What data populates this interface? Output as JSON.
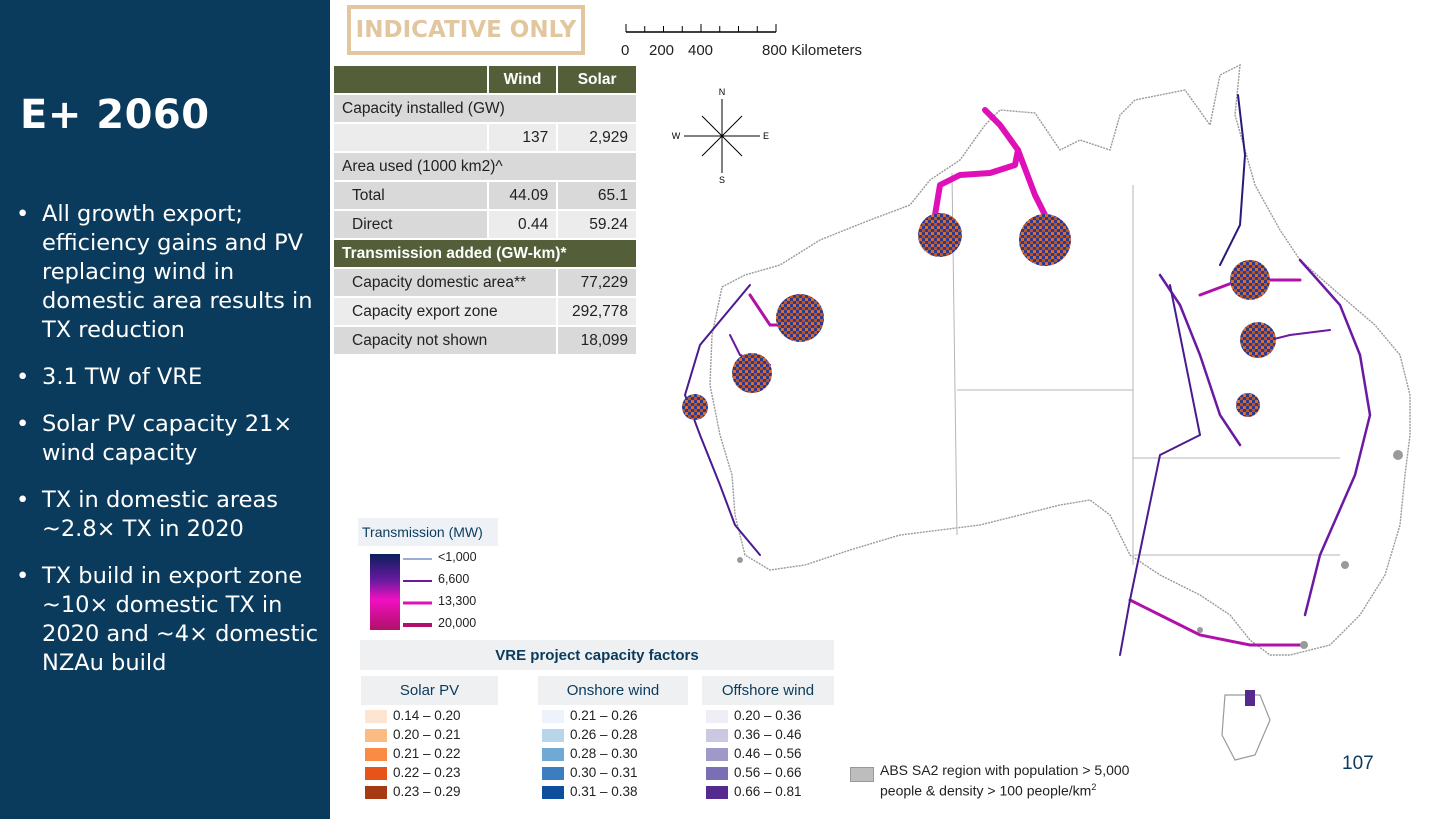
{
  "sidebar": {
    "title": "E+ 2060",
    "bullets": [
      "All growth export; efficiency gains and PV replacing wind in domestic area results in TX reduction",
      "3.1 TW of VRE",
      "Solar PV capacity 21× wind capacity",
      "TX in domestic areas ~2.8× TX in 2020",
      "TX build in export zone ~10× domestic TX in 2020 and ~4× domestic NZAu build"
    ]
  },
  "banner": {
    "text": "INDICATIVE ONLY",
    "color": "#e2c79e"
  },
  "scalebar": {
    "labels": [
      "0",
      "200",
      "400",
      "800 Kilometers"
    ]
  },
  "compass": {
    "n": "N",
    "s": "S",
    "e": "E",
    "w": "W"
  },
  "table": {
    "col_wind": "Wind",
    "col_solar": "Solar",
    "capacity_label": "Capacity installed (GW)",
    "capacity_wind": "137",
    "capacity_solar": "2,929",
    "area_label": "Area used (1000 km2)^",
    "total_label": "Total",
    "total_wind": "44.09",
    "total_solar": "65.1",
    "direct_label": "Direct",
    "direct_wind": "0.44",
    "direct_solar": "59.24",
    "tx_label": "Transmission added (GW-km)*",
    "dom_label": "Capacity domestic area**",
    "dom_value": "77,229",
    "export_label": "Capacity export zone",
    "export_value": "292,778",
    "notshown_label": "Capacity not shown",
    "notshown_value": "18,099"
  },
  "tx_legend": {
    "title": "Transmission (MW)",
    "items": [
      "<1,000",
      "6,600",
      "13,300",
      "20,000"
    ]
  },
  "vre_legend": {
    "title": "VRE project capacity factors",
    "solar": {
      "head": "Solar PV",
      "items": [
        {
          "label": "0.14 – 0.20",
          "color": "#fde5d2"
        },
        {
          "label": "0.20 – 0.21",
          "color": "#fdbb84"
        },
        {
          "label": "0.21 – 0.22",
          "color": "#f98b44"
        },
        {
          "label": "0.22 – 0.23",
          "color": "#e6541a"
        },
        {
          "label": "0.23 – 0.29",
          "color": "#a63a12"
        }
      ]
    },
    "onshore": {
      "head": "Onshore wind",
      "items": [
        {
          "label": "0.21 – 0.26",
          "color": "#eef3fb"
        },
        {
          "label": "0.26 – 0.28",
          "color": "#b9d5ea"
        },
        {
          "label": "0.28 – 0.30",
          "color": "#6fa9d4"
        },
        {
          "label": "0.30 – 0.31",
          "color": "#3a7ebf"
        },
        {
          "label": "0.31 – 0.38",
          "color": "#0d4f9c"
        }
      ]
    },
    "offshore": {
      "head": "Offshore wind",
      "items": [
        {
          "label": "0.20 – 0.36",
          "color": "#efeef6"
        },
        {
          "label": "0.36 – 0.46",
          "color": "#cbc8e2"
        },
        {
          "label": "0.46 – 0.56",
          "color": "#9e99c9"
        },
        {
          "label": "0.56 – 0.66",
          "color": "#7a6fb5"
        },
        {
          "label": "0.66 – 0.81",
          "color": "#542a8f"
        }
      ]
    }
  },
  "abs_legend": {
    "line1": "ABS SA2 region with population > 5,000",
    "line2": "people & density > 100 people/km",
    "sup": "2"
  },
  "page_number": "107",
  "colors": {
    "sidebar_bg": "#0b3b5c",
    "table_header": "#545f3a",
    "tx_magenta": "#e010b8",
    "tx_purple": "#6a1aa0",
    "tx_navy": "#2a1a78"
  }
}
